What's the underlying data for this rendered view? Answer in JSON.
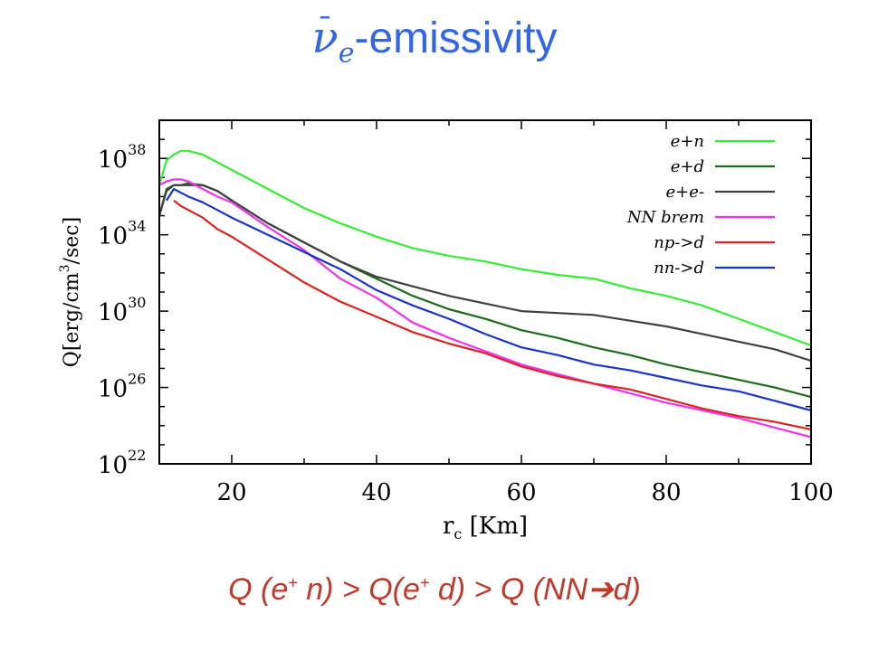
{
  "header": {
    "nu": "ν",
    "bar": "¯",
    "sub": "e",
    "rest": "-emissivity"
  },
  "footer": {
    "p1": "Q (e",
    "s1": "+",
    "p2": " n) > Q(e",
    "s2": "+",
    "p3": " d) > Q (NN",
    "arrow": "➔",
    "p4": "d)"
  },
  "chart_data": {
    "type": "line",
    "xlabel": "r_c [Km]",
    "ylabel": "Q[erg/cm^3/sec]",
    "xlim": [
      10,
      100
    ],
    "ylim_log10": [
      22,
      40
    ],
    "y_scale": "log",
    "x_ticks": [
      20,
      40,
      60,
      80,
      100
    ],
    "y_ticks_log10": [
      22,
      26,
      30,
      34,
      38
    ],
    "legend_position": "top-right",
    "series": [
      {
        "name": "e+n",
        "color": "#33ee33",
        "x": [
          10,
          11,
          12,
          13,
          14,
          16,
          18,
          20,
          25,
          30,
          35,
          40,
          45,
          50,
          55,
          60,
          65,
          70,
          75,
          80,
          85,
          90,
          95,
          100
        ],
        "y": [
          36.6,
          37.9,
          38.2,
          38.4,
          38.4,
          38.2,
          37.8,
          37.4,
          36.4,
          35.4,
          34.6,
          33.9,
          33.3,
          32.9,
          32.6,
          32.2,
          31.9,
          31.7,
          31.2,
          30.8,
          30.3,
          29.6,
          28.9,
          28.2
        ]
      },
      {
        "name": "e+d",
        "color": "#1a6b1a",
        "x": [
          10,
          11,
          12,
          13,
          14,
          16,
          18,
          20,
          25,
          30,
          35,
          40,
          45,
          50,
          55,
          60,
          65,
          70,
          75,
          80,
          85,
          90,
          95,
          100
        ],
        "y": [
          35.0,
          36.4,
          36.6,
          36.6,
          36.7,
          36.6,
          36.3,
          35.8,
          34.6,
          33.6,
          32.6,
          31.7,
          30.8,
          30.1,
          29.6,
          29.0,
          28.6,
          28.1,
          27.7,
          27.2,
          26.8,
          26.4,
          26.0,
          25.5
        ]
      },
      {
        "name": "e+e-",
        "color": "#404040",
        "x": [
          10,
          11,
          12,
          13,
          14,
          16,
          18,
          20,
          25,
          30,
          35,
          40,
          45,
          50,
          55,
          60,
          65,
          70,
          75,
          80,
          85,
          90,
          95,
          100
        ],
        "y": [
          35.0,
          36.3,
          36.6,
          36.6,
          36.6,
          36.6,
          36.3,
          35.8,
          34.6,
          33.6,
          32.6,
          31.8,
          31.3,
          30.8,
          30.4,
          30.0,
          29.9,
          29.8,
          29.5,
          29.2,
          28.8,
          28.4,
          28.0,
          27.4
        ]
      },
      {
        "name": "NN brem",
        "color": "#ee33ee",
        "x": [
          10,
          11,
          12,
          13,
          14,
          16,
          18,
          20,
          25,
          30,
          35,
          40,
          45,
          50,
          55,
          60,
          65,
          70,
          75,
          80,
          85,
          90,
          95,
          100
        ],
        "y": [
          36.6,
          36.8,
          36.9,
          36.9,
          36.8,
          36.4,
          36.0,
          35.7,
          34.4,
          33.2,
          31.7,
          30.7,
          29.4,
          28.6,
          27.9,
          27.2,
          26.7,
          26.2,
          25.7,
          25.2,
          24.8,
          24.4,
          23.9,
          23.4
        ]
      },
      {
        "name": "np->d",
        "color": "#dd2222",
        "x": [
          12,
          13,
          14,
          16,
          18,
          20,
          25,
          30,
          35,
          40,
          45,
          50,
          55,
          60,
          65,
          70,
          75,
          80,
          85,
          90,
          95,
          100
        ],
        "y": [
          35.8,
          35.5,
          35.3,
          34.9,
          34.3,
          33.9,
          32.7,
          31.5,
          30.5,
          29.7,
          28.9,
          28.3,
          27.8,
          27.1,
          26.6,
          26.2,
          25.9,
          25.4,
          24.9,
          24.5,
          24.2,
          23.8
        ]
      },
      {
        "name": "nn->d",
        "color": "#1a33cc",
        "x": [
          11,
          12,
          13,
          14,
          16,
          18,
          20,
          25,
          30,
          35,
          40,
          45,
          50,
          55,
          60,
          65,
          70,
          75,
          80,
          85,
          90,
          95,
          100
        ],
        "y": [
          35.8,
          36.4,
          36.2,
          36.0,
          35.7,
          35.3,
          34.9,
          34.0,
          33.1,
          32.2,
          31.1,
          30.3,
          29.6,
          28.8,
          28.1,
          27.7,
          27.2,
          26.9,
          26.5,
          26.1,
          25.8,
          25.3,
          24.8
        ]
      }
    ]
  }
}
